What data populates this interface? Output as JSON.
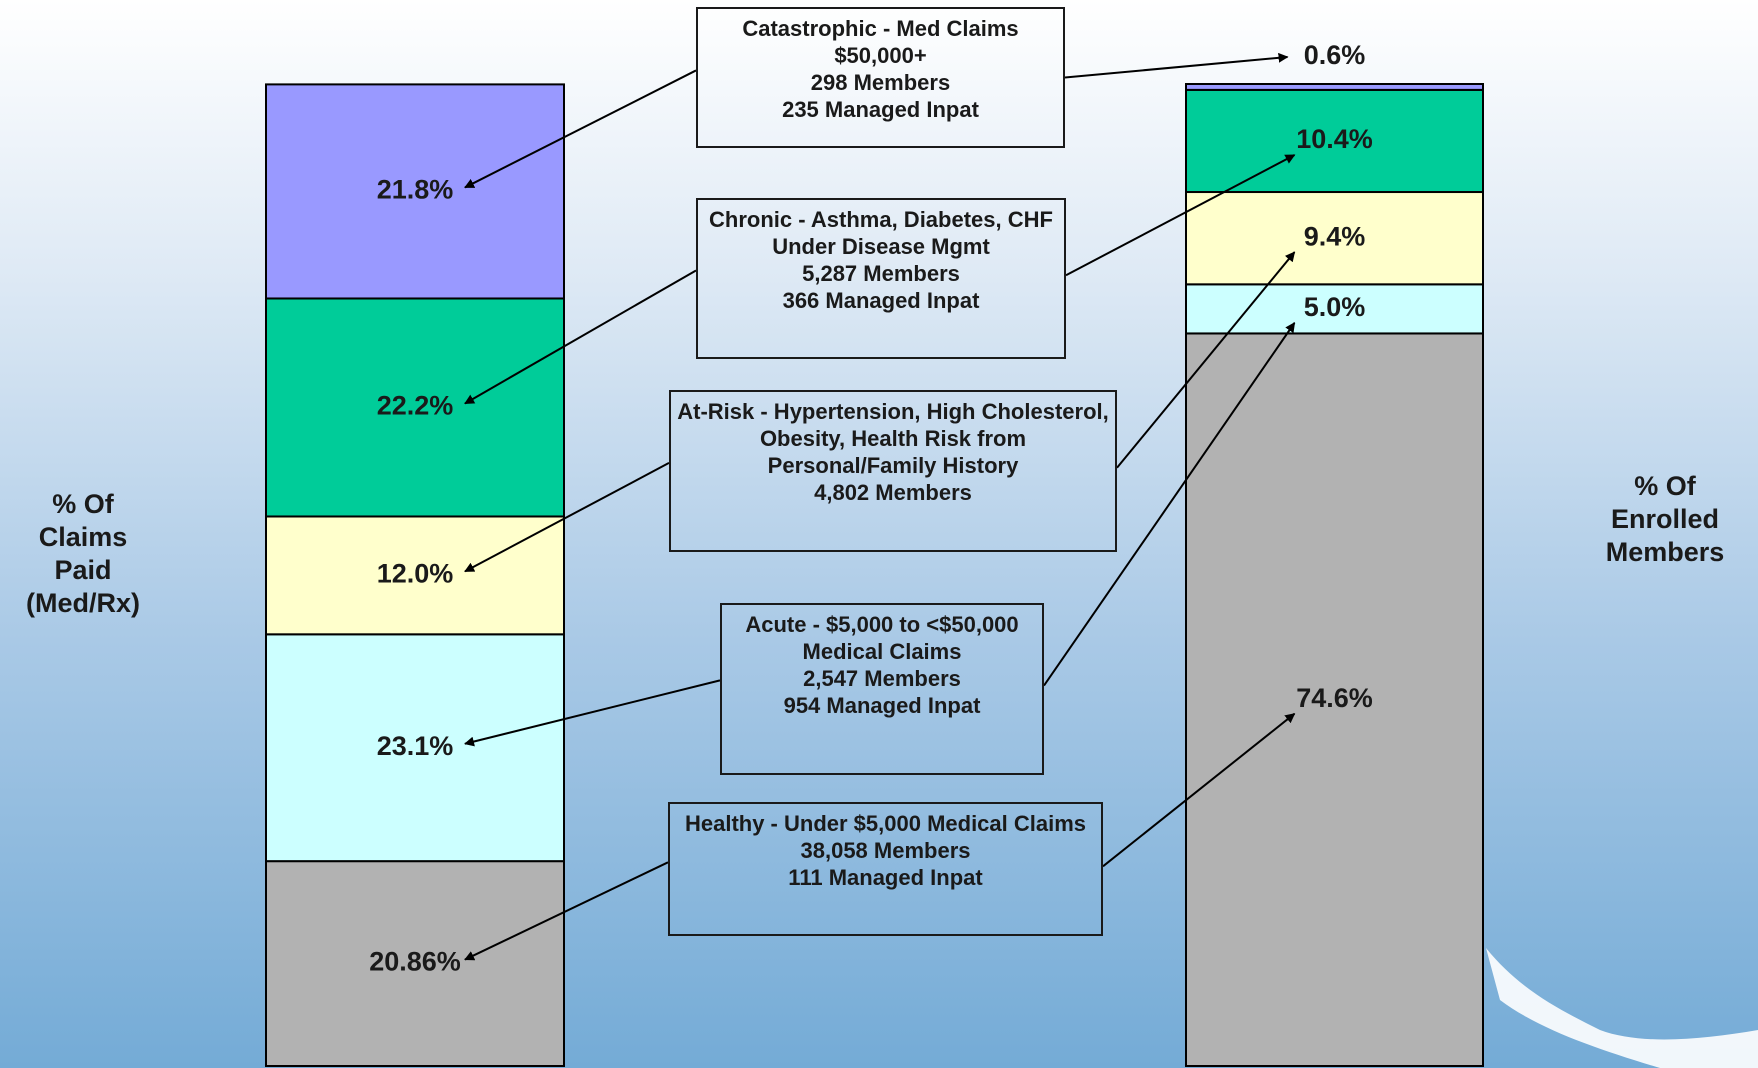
{
  "chart_data": {
    "type": "stacked-bar",
    "categories": [
      "% Of Claims Paid (Med/Rx)",
      "% Of Enrolled Members"
    ],
    "ylim": [
      0,
      100
    ],
    "series": [
      {
        "name": "Catastrophic - Med Claims",
        "details": [
          "$50,000+",
          "298 Members",
          "235 Managed Inpat"
        ],
        "color": "#9999ff",
        "values": [
          21.8,
          0.6
        ],
        "value_labels": [
          "21.8%",
          "0.6%"
        ]
      },
      {
        "name": "Chronic - Asthma, Diabetes, CHF",
        "details": [
          "Under Disease Mgmt",
          "5,287 Members",
          "366 Managed Inpat"
        ],
        "color": "#00cc99",
        "values": [
          22.2,
          10.4
        ],
        "value_labels": [
          "22.2%",
          "10.4%"
        ]
      },
      {
        "name": "At-Risk - Hypertension, High Cholesterol, Obesity, Health Risk from Personal/Family History",
        "details": [
          "4,802  Members"
        ],
        "color": "#ffffcc",
        "values": [
          12.0,
          9.4
        ],
        "value_labels": [
          "12.0%",
          "9.4%"
        ]
      },
      {
        "name": "Acute - $5,000 to <$50,000 Medical Claims",
        "details": [
          "2,547 Members",
          "954 Managed Inpat"
        ],
        "color": "#ccffff",
        "values": [
          23.1,
          5.0
        ],
        "value_labels": [
          "23.1%",
          "5.0%"
        ]
      },
      {
        "name": "Healthy - Under $5,000 Medical Claims",
        "details": [
          "38,058 Members",
          "111 Managed Inpat"
        ],
        "color": "#b2b2b2",
        "values": [
          20.86,
          74.6
        ],
        "value_labels": [
          "20.86%",
          "74.6%"
        ]
      }
    ]
  }
}
